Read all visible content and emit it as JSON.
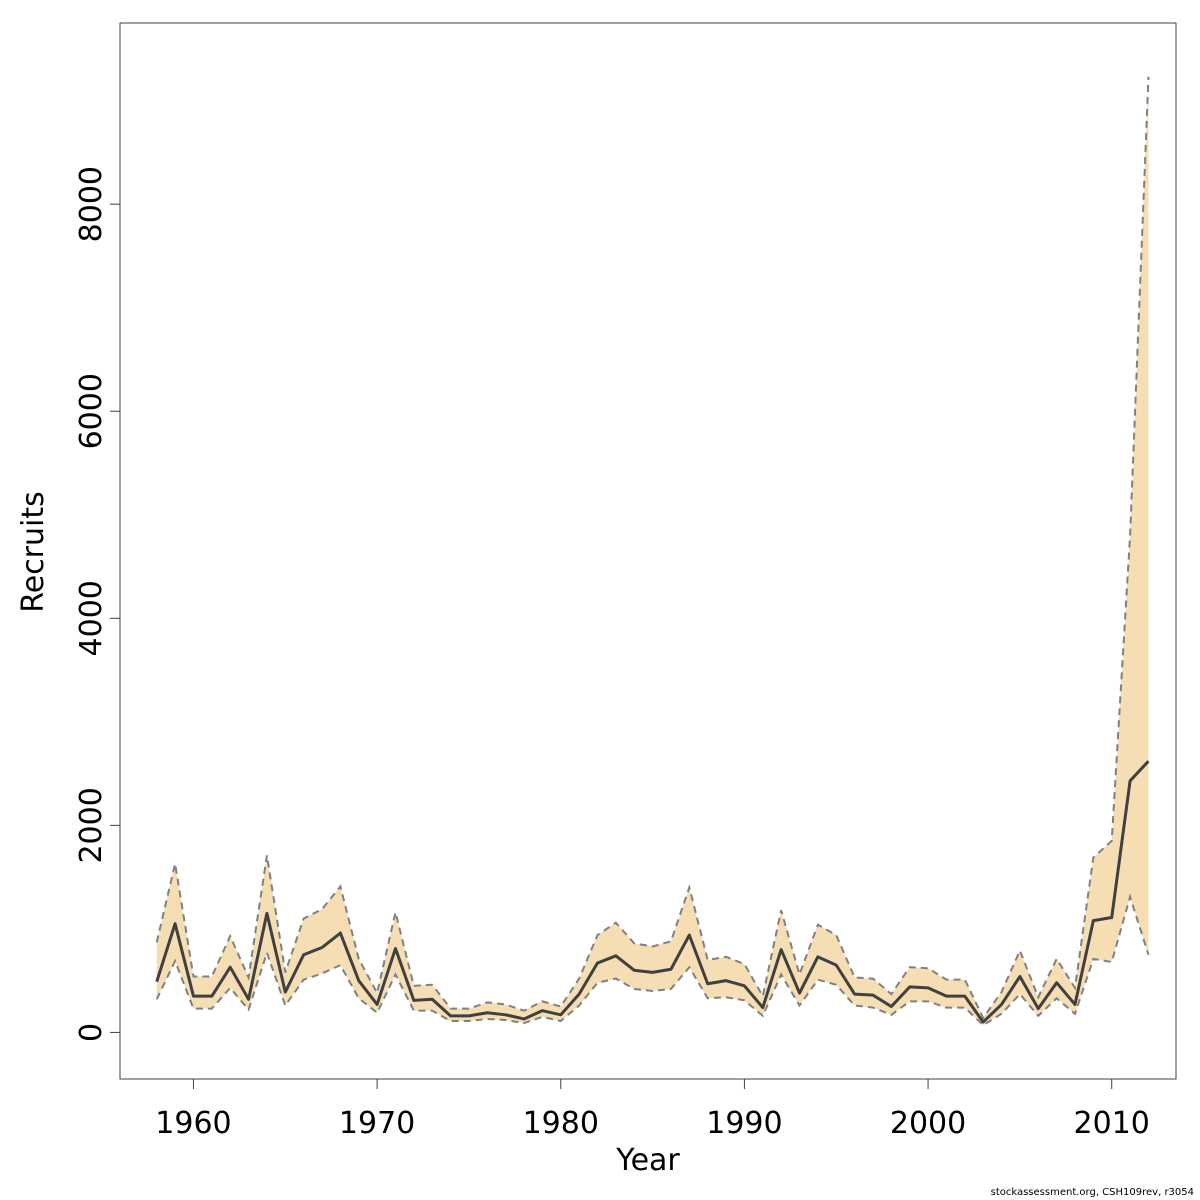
{
  "chart_data": {
    "type": "area",
    "xlabel": "Year",
    "ylabel": "Recruits",
    "xlim": [
      1956,
      2013.5
    ],
    "ylim": [
      -450,
      9750
    ],
    "x_ticks": [
      1960,
      1970,
      1980,
      1990,
      2000,
      2010
    ],
    "y_ticks": [
      0,
      2000,
      4000,
      6000,
      8000
    ],
    "x_tick_labels": [
      "1960",
      "1970",
      "1980",
      "1990",
      "2000",
      "2010"
    ],
    "y_tick_labels": [
      "0",
      "2000",
      "4000",
      "6000",
      "8000"
    ],
    "grid": false,
    "legend": "none",
    "colors": {
      "band": "#f5deb3",
      "median": "#404040",
      "bounds": "#808080",
      "frame": "#404040"
    },
    "x": [
      1958,
      1959,
      1960,
      1961,
      1962,
      1963,
      1964,
      1965,
      1966,
      1967,
      1968,
      1969,
      1970,
      1971,
      1972,
      1973,
      1974,
      1975,
      1976,
      1977,
      1978,
      1979,
      1980,
      1981,
      1982,
      1983,
      1984,
      1985,
      1986,
      1987,
      1988,
      1989,
      1990,
      1991,
      1992,
      1993,
      1994,
      1995,
      1996,
      1997,
      1998,
      1999,
      2000,
      2001,
      2002,
      2003,
      2004,
      2005,
      2006,
      2007,
      2008,
      2009,
      2010,
      2011,
      2012
    ],
    "series": [
      {
        "role": "estimate",
        "values": [
          490,
          1050,
          350,
          350,
          630,
          320,
          1150,
          390,
          750,
          820,
          960,
          500,
          270,
          810,
          310,
          320,
          160,
          160,
          190,
          170,
          130,
          210,
          170,
          370,
          670,
          740,
          600,
          580,
          610,
          940,
          470,
          500,
          450,
          240,
          800,
          380,
          730,
          650,
          370,
          360,
          250,
          440,
          430,
          350,
          350,
          100,
          270,
          540,
          230,
          480,
          270,
          1080,
          1110,
          2430,
          2620
        ]
      },
      {
        "role": "upper",
        "values": [
          870,
          1630,
          540,
          540,
          930,
          530,
          1710,
          580,
          1100,
          1190,
          1410,
          710,
          380,
          1160,
          450,
          460,
          230,
          230,
          290,
          270,
          210,
          300,
          250,
          520,
          940,
          1060,
          860,
          830,
          880,
          1400,
          700,
          730,
          660,
          350,
          1180,
          560,
          1040,
          940,
          530,
          520,
          370,
          630,
          620,
          510,
          510,
          140,
          390,
          790,
          340,
          710,
          430,
          1690,
          1850,
          4800,
          9230
        ]
      },
      {
        "role": "lower",
        "values": [
          320,
          690,
          230,
          230,
          430,
          220,
          770,
          260,
          510,
          570,
          650,
          330,
          190,
          560,
          210,
          210,
          110,
          110,
          130,
          120,
          90,
          150,
          110,
          260,
          480,
          520,
          420,
          400,
          420,
          630,
          330,
          340,
          310,
          160,
          560,
          260,
          510,
          460,
          260,
          240,
          170,
          300,
          300,
          240,
          240,
          70,
          180,
          370,
          160,
          330,
          180,
          710,
          680,
          1310,
          750
        ]
      }
    ]
  },
  "credit": "stockassessment.org, CSH109rev, r3054"
}
